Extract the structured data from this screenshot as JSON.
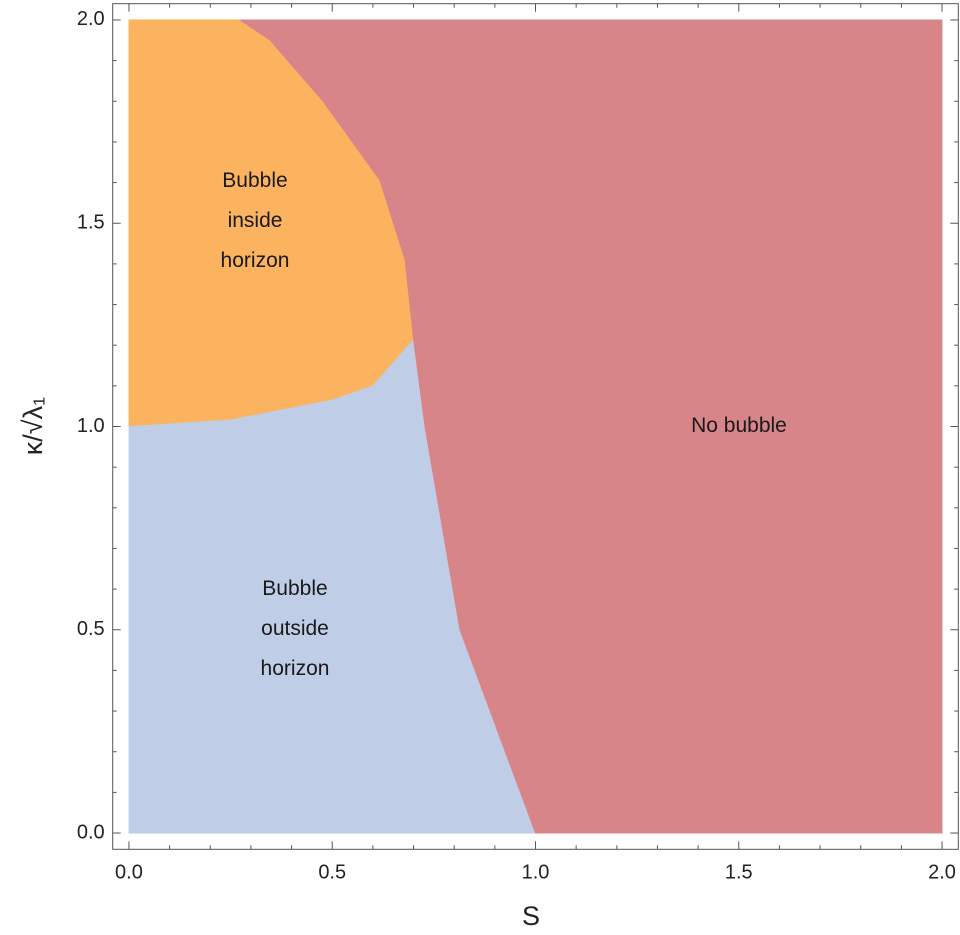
{
  "chart_data": {
    "type": "region",
    "xlabel": "S",
    "ylabel": "κ/√λ₁",
    "xlim": [
      -0.04,
      2.04
    ],
    "ylim": [
      -0.04,
      2.04
    ],
    "xticks": [
      {
        "value": 0,
        "label": "0.0"
      },
      {
        "value": 0.5,
        "label": "0.5"
      },
      {
        "value": 1,
        "label": "1.0"
      },
      {
        "value": 1.5,
        "label": "1.5"
      },
      {
        "value": 2,
        "label": "2.0"
      }
    ],
    "yticks": [
      {
        "value": 0,
        "label": "0.0"
      },
      {
        "value": 0.5,
        "label": "0.5"
      },
      {
        "value": 1,
        "label": "1.0"
      },
      {
        "value": 1.5,
        "label": "1.5"
      },
      {
        "value": 2,
        "label": "2.0"
      }
    ],
    "xminorticks": [
      0.1,
      0.2,
      0.3,
      0.4,
      0.6,
      0.7,
      0.8,
      0.9,
      1.1,
      1.2,
      1.3,
      1.4,
      1.6,
      1.7,
      1.8,
      1.9
    ],
    "yminorticks": [
      0.1,
      0.2,
      0.3,
      0.4,
      0.6,
      0.7,
      0.8,
      0.9,
      1.1,
      1.2,
      1.3,
      1.4,
      1.6,
      1.7,
      1.8,
      1.9
    ],
    "series": [
      {
        "name": "Bubble inside horizon",
        "color": "#fbb360",
        "x": [
          0,
          0.25,
          0.5,
          0.6,
          0.7,
          0.679,
          0.617,
          0.475,
          0.347,
          0.273,
          0
        ],
        "y": [
          1.0,
          1.016,
          1.065,
          1.1,
          1.213,
          1.41,
          1.606,
          1.803,
          1.95,
          2.0,
          2.0
        ]
      },
      {
        "name": "Bubble outside horizon",
        "color": "#bfcde6",
        "x": [
          0,
          1.0,
          0.814,
          0.728,
          0.7,
          0.6,
          0.5,
          0.25,
          0
        ],
        "y": [
          0,
          0,
          0.5,
          1.0,
          1.213,
          1.1,
          1.065,
          1.016,
          1.0
        ]
      },
      {
        "name": "No bubble",
        "color": "#d8858a",
        "x": [
          1.0,
          2.0,
          2.0,
          0.273,
          0.347,
          0.475,
          0.617,
          0.679,
          0.7,
          0.728,
          0.814,
          1.0
        ],
        "y": [
          0,
          0,
          2.0,
          2.0,
          1.95,
          1.803,
          1.606,
          1.41,
          1.213,
          1.0,
          0.5,
          0
        ]
      }
    ]
  }
}
